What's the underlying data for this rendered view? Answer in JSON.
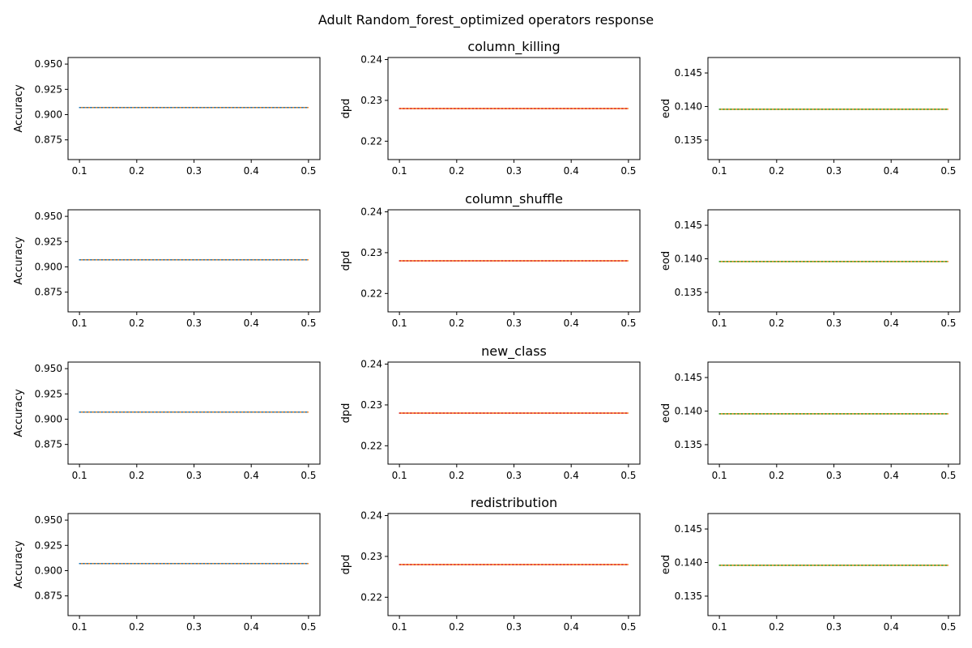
{
  "figure": {
    "suptitle": "Adult Random_forest_optimized operators response"
  },
  "chart_data": [
    {
      "type": "line",
      "operator": "column_killing",
      "metric": "Accuracy",
      "ylabel": "Accuracy",
      "title": "",
      "x": [
        0.1,
        0.5
      ],
      "xlim": [
        0.08,
        0.52
      ],
      "xticks": [
        "0.1",
        "0.2",
        "0.3",
        "0.4",
        "0.5"
      ],
      "ylim": [
        0.8555,
        0.9565
      ],
      "yticks": [
        "0.875",
        "0.900",
        "0.925",
        "0.950"
      ],
      "series": [
        {
          "values": [
            0.907,
            0.907
          ],
          "color": "#ff7f0e",
          "dash": "solid"
        },
        {
          "values": [
            0.907,
            0.907
          ],
          "color": "#1f77b4",
          "dash": "dotted"
        }
      ]
    },
    {
      "type": "line",
      "operator": "column_killing",
      "metric": "dpd",
      "ylabel": "dpd",
      "title": "column_killing",
      "x": [
        0.1,
        0.5
      ],
      "xlim": [
        0.08,
        0.52
      ],
      "xticks": [
        "0.1",
        "0.2",
        "0.3",
        "0.4",
        "0.5"
      ],
      "ylim": [
        0.2155,
        0.2405
      ],
      "yticks": [
        "0.22",
        "0.23",
        "0.24"
      ],
      "series": [
        {
          "values": [
            0.228,
            0.228
          ],
          "color": "#ff7f0e",
          "dash": "solid"
        },
        {
          "values": [
            0.228,
            0.228
          ],
          "color": "#d62728",
          "dash": "dotted"
        }
      ]
    },
    {
      "type": "line",
      "operator": "column_killing",
      "metric": "eod",
      "ylabel": "eod",
      "title": "",
      "x": [
        0.1,
        0.5
      ],
      "xlim": [
        0.08,
        0.52
      ],
      "xticks": [
        "0.1",
        "0.2",
        "0.3",
        "0.4",
        "0.5"
      ],
      "ylim": [
        0.1321,
        0.1473
      ],
      "yticks": [
        "0.135",
        "0.140",
        "0.145"
      ],
      "series": [
        {
          "values": [
            0.1396,
            0.1396
          ],
          "color": "#ff7f0e",
          "dash": "solid"
        },
        {
          "values": [
            0.1396,
            0.1396
          ],
          "color": "#2ca02c",
          "dash": "dotted"
        }
      ]
    },
    {
      "type": "line",
      "operator": "column_shuffle",
      "metric": "Accuracy",
      "ylabel": "Accuracy",
      "title": "",
      "x": [
        0.1,
        0.5
      ],
      "xlim": [
        0.08,
        0.52
      ],
      "xticks": [
        "0.1",
        "0.2",
        "0.3",
        "0.4",
        "0.5"
      ],
      "ylim": [
        0.8555,
        0.9565
      ],
      "yticks": [
        "0.875",
        "0.900",
        "0.925",
        "0.950"
      ],
      "series": [
        {
          "values": [
            0.907,
            0.907
          ],
          "color": "#ff7f0e",
          "dash": "solid"
        },
        {
          "values": [
            0.907,
            0.907
          ],
          "color": "#1f77b4",
          "dash": "dotted"
        }
      ]
    },
    {
      "type": "line",
      "operator": "column_shuffle",
      "metric": "dpd",
      "ylabel": "dpd",
      "title": "column_shuffle",
      "x": [
        0.1,
        0.5
      ],
      "xlim": [
        0.08,
        0.52
      ],
      "xticks": [
        "0.1",
        "0.2",
        "0.3",
        "0.4",
        "0.5"
      ],
      "ylim": [
        0.2155,
        0.2405
      ],
      "yticks": [
        "0.22",
        "0.23",
        "0.24"
      ],
      "series": [
        {
          "values": [
            0.228,
            0.228
          ],
          "color": "#ff7f0e",
          "dash": "solid"
        },
        {
          "values": [
            0.228,
            0.228
          ],
          "color": "#d62728",
          "dash": "dotted"
        }
      ]
    },
    {
      "type": "line",
      "operator": "column_shuffle",
      "metric": "eod",
      "ylabel": "eod",
      "title": "",
      "x": [
        0.1,
        0.5
      ],
      "xlim": [
        0.08,
        0.52
      ],
      "xticks": [
        "0.1",
        "0.2",
        "0.3",
        "0.4",
        "0.5"
      ],
      "ylim": [
        0.1321,
        0.1473
      ],
      "yticks": [
        "0.135",
        "0.140",
        "0.145"
      ],
      "series": [
        {
          "values": [
            0.1396,
            0.1396
          ],
          "color": "#ff7f0e",
          "dash": "solid"
        },
        {
          "values": [
            0.1396,
            0.1396
          ],
          "color": "#2ca02c",
          "dash": "dotted"
        }
      ]
    },
    {
      "type": "line",
      "operator": "new_class",
      "metric": "Accuracy",
      "ylabel": "Accuracy",
      "title": "",
      "x": [
        0.1,
        0.5
      ],
      "xlim": [
        0.08,
        0.52
      ],
      "xticks": [
        "0.1",
        "0.2",
        "0.3",
        "0.4",
        "0.5"
      ],
      "ylim": [
        0.8555,
        0.9565
      ],
      "yticks": [
        "0.875",
        "0.900",
        "0.925",
        "0.950"
      ],
      "series": [
        {
          "values": [
            0.907,
            0.907
          ],
          "color": "#ff7f0e",
          "dash": "solid"
        },
        {
          "values": [
            0.907,
            0.907
          ],
          "color": "#1f77b4",
          "dash": "dotted"
        }
      ]
    },
    {
      "type": "line",
      "operator": "new_class",
      "metric": "dpd",
      "ylabel": "dpd",
      "title": "new_class",
      "x": [
        0.1,
        0.5
      ],
      "xlim": [
        0.08,
        0.52
      ],
      "xticks": [
        "0.1",
        "0.2",
        "0.3",
        "0.4",
        "0.5"
      ],
      "ylim": [
        0.2155,
        0.2405
      ],
      "yticks": [
        "0.22",
        "0.23",
        "0.24"
      ],
      "series": [
        {
          "values": [
            0.228,
            0.228
          ],
          "color": "#ff7f0e",
          "dash": "solid"
        },
        {
          "values": [
            0.228,
            0.228
          ],
          "color": "#d62728",
          "dash": "dotted"
        }
      ]
    },
    {
      "type": "line",
      "operator": "new_class",
      "metric": "eod",
      "ylabel": "eod",
      "title": "",
      "x": [
        0.1,
        0.5
      ],
      "xlim": [
        0.08,
        0.52
      ],
      "xticks": [
        "0.1",
        "0.2",
        "0.3",
        "0.4",
        "0.5"
      ],
      "ylim": [
        0.1321,
        0.1473
      ],
      "yticks": [
        "0.135",
        "0.140",
        "0.145"
      ],
      "series": [
        {
          "values": [
            0.1396,
            0.1396
          ],
          "color": "#ff7f0e",
          "dash": "solid"
        },
        {
          "values": [
            0.1396,
            0.1396
          ],
          "color": "#2ca02c",
          "dash": "dotted"
        }
      ]
    },
    {
      "type": "line",
      "operator": "redistribution",
      "metric": "Accuracy",
      "ylabel": "Accuracy",
      "title": "",
      "x": [
        0.1,
        0.5
      ],
      "xlim": [
        0.08,
        0.52
      ],
      "xticks": [
        "0.1",
        "0.2",
        "0.3",
        "0.4",
        "0.5"
      ],
      "ylim": [
        0.8555,
        0.9565
      ],
      "yticks": [
        "0.875",
        "0.900",
        "0.925",
        "0.950"
      ],
      "series": [
        {
          "values": [
            0.907,
            0.907
          ],
          "color": "#ff7f0e",
          "dash": "solid"
        },
        {
          "values": [
            0.907,
            0.907
          ],
          "color": "#1f77b4",
          "dash": "dotted"
        }
      ]
    },
    {
      "type": "line",
      "operator": "redistribution",
      "metric": "dpd",
      "ylabel": "dpd",
      "title": "redistribution",
      "x": [
        0.1,
        0.5
      ],
      "xlim": [
        0.08,
        0.52
      ],
      "xticks": [
        "0.1",
        "0.2",
        "0.3",
        "0.4",
        "0.5"
      ],
      "ylim": [
        0.2155,
        0.2405
      ],
      "yticks": [
        "0.22",
        "0.23",
        "0.24"
      ],
      "series": [
        {
          "values": [
            0.228,
            0.228
          ],
          "color": "#ff7f0e",
          "dash": "solid"
        },
        {
          "values": [
            0.228,
            0.228
          ],
          "color": "#d62728",
          "dash": "dotted"
        }
      ]
    },
    {
      "type": "line",
      "operator": "redistribution",
      "metric": "eod",
      "ylabel": "eod",
      "title": "",
      "x": [
        0.1,
        0.5
      ],
      "xlim": [
        0.08,
        0.52
      ],
      "xticks": [
        "0.1",
        "0.2",
        "0.3",
        "0.4",
        "0.5"
      ],
      "ylim": [
        0.1321,
        0.1473
      ],
      "yticks": [
        "0.135",
        "0.140",
        "0.145"
      ],
      "series": [
        {
          "values": [
            0.1396,
            0.1396
          ],
          "color": "#ff7f0e",
          "dash": "solid"
        },
        {
          "values": [
            0.1396,
            0.1396
          ],
          "color": "#2ca02c",
          "dash": "dotted"
        }
      ]
    }
  ]
}
